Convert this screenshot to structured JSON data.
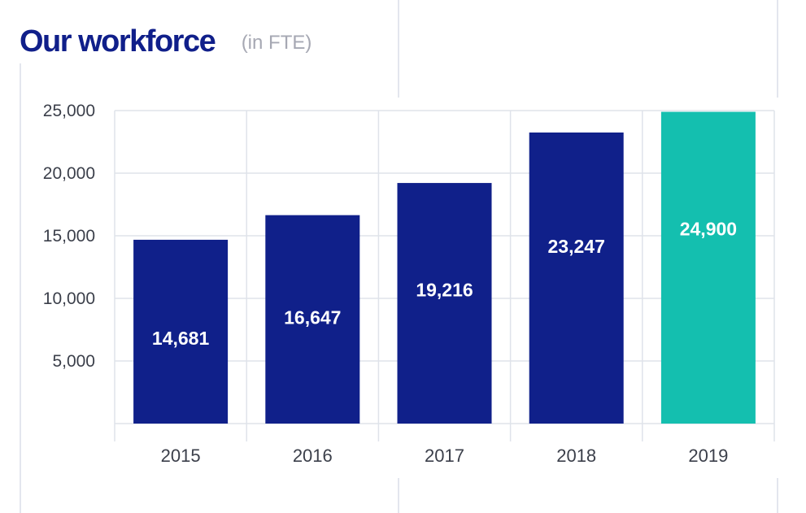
{
  "header": {
    "title": "Our workforce",
    "subtitle": "(in FTE)"
  },
  "colors": {
    "bar": "#10208a",
    "highlight": "#14bfaf",
    "grid": "#dfe3ea",
    "text": "#3b3f4a"
  },
  "chart_data": {
    "type": "bar",
    "title": "Our workforce",
    "subtitle": "(in FTE)",
    "categories": [
      "2015",
      "2016",
      "2017",
      "2018",
      "2019"
    ],
    "values": [
      14681,
      16647,
      19216,
      23247,
      24900
    ],
    "value_labels": [
      "14,681",
      "16,647",
      "19,216",
      "23,247",
      "24,900"
    ],
    "highlight_index": 4,
    "ylim": [
      0,
      25000
    ],
    "yticks": [
      5000,
      10000,
      15000,
      20000,
      25000
    ],
    "ytick_labels": [
      "5,000",
      "10,000",
      "15,000",
      "20,000",
      "25,000"
    ],
    "grid": true,
    "legend": "none"
  }
}
